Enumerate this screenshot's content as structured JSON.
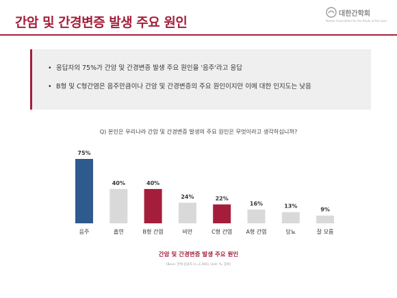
{
  "header": {
    "title": "간암 및 간경변증 발생 주요 원인",
    "logo_name": "대한간학회",
    "logo_subtitle": "Korean Association for the Study of the Liver"
  },
  "summary": {
    "bullet_symbol": "•",
    "items": [
      "응답자의 75%가 간암 및 간경변증 발생 주요 원인을 '음주'라고 응답",
      "B형 및 C형간염은 음주만큼이나 간암 및 간경변증의 주요 원인이지만 이에 대한 인지도는 낮음"
    ]
  },
  "question": "Q) 본인은 우리나라 간암 및 간경변증 발생의 주요 원인은 무엇이라고 생각하십니까?",
  "caption": "간암 및 간경변증 발생 주요 원인",
  "note": "[Base: 전체 응답자 (n=1,000), Unit: %, 중복]",
  "colors": {
    "accent": "#a41e3b",
    "highlight_blue": "#2e5a8e",
    "neutral_bar": "#d9d9d9"
  },
  "chart_data": {
    "type": "bar",
    "categories": [
      "음주",
      "흡연",
      "B형 간염",
      "비만",
      "C형 간염",
      "A형 간염",
      "당뇨",
      "잘 모름"
    ],
    "values": [
      75,
      40,
      40,
      24,
      22,
      16,
      13,
      9
    ],
    "value_labels": [
      "75%",
      "40%",
      "40%",
      "24%",
      "22%",
      "16%",
      "13%",
      "9%"
    ],
    "bar_colors": [
      "#2e5a8e",
      "#d9d9d9",
      "#a41e3b",
      "#d9d9d9",
      "#a41e3b",
      "#d9d9d9",
      "#d9d9d9",
      "#d9d9d9"
    ],
    "ylim": [
      0,
      100
    ],
    "grid": false,
    "legend": "none"
  }
}
